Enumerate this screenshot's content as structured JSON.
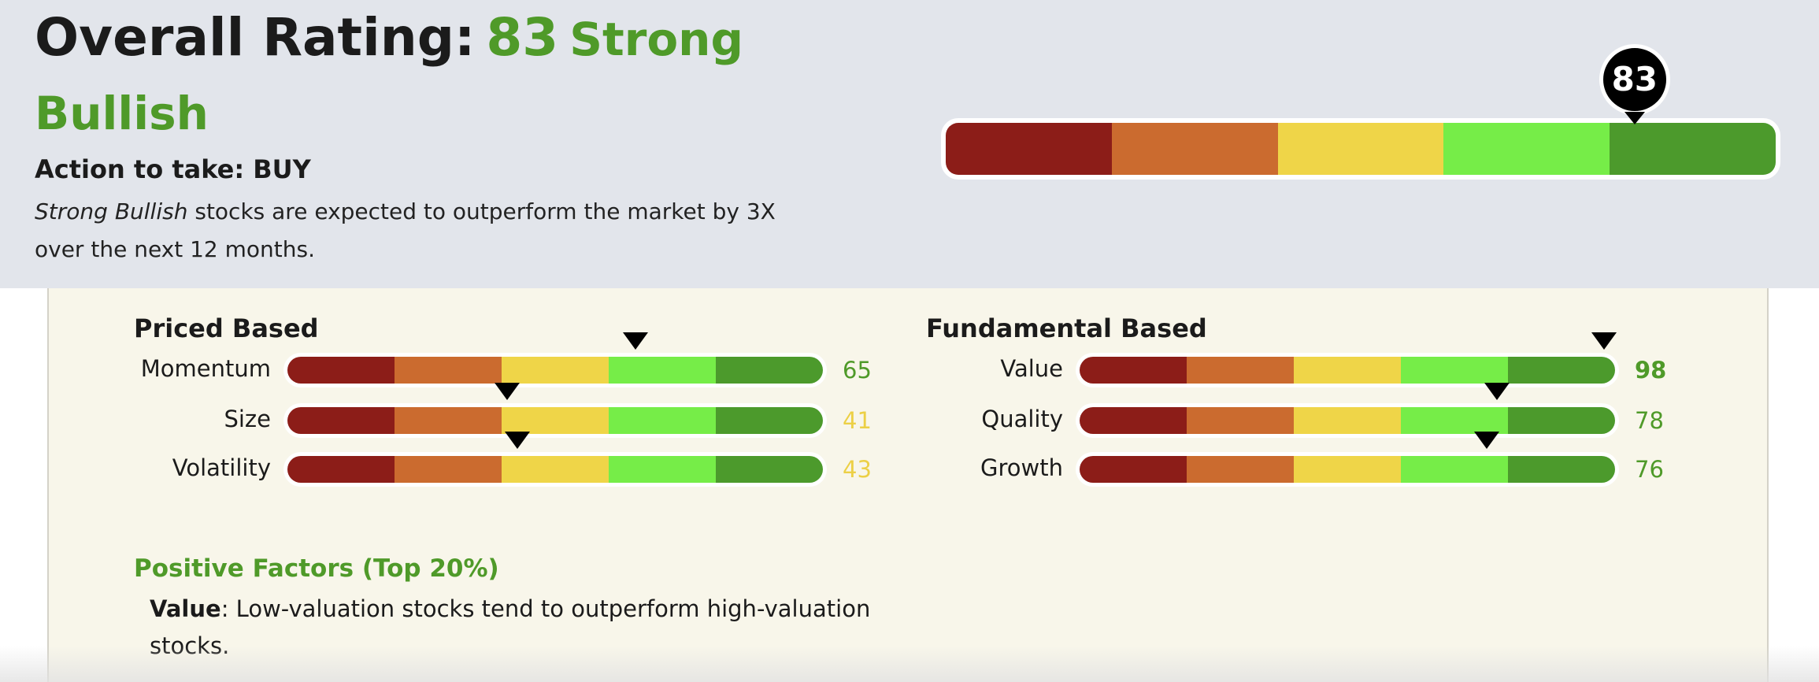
{
  "header": {
    "title_prefix": "Overall Rating:",
    "score": "83",
    "rating_label": "Strong Bullish",
    "action": "Action to take: BUY",
    "desc_em": "Strong Bullish",
    "desc_rest": " stocks are expected to outperform the market by 3X over the next 12 months.",
    "gauge_value": 83
  },
  "colors": {
    "accent_green": "#4f9a29",
    "low_score": "#ecd046",
    "segments": [
      "#8c1d18",
      "#cb6b2f",
      "#efd548",
      "#76ed48",
      "#4c9a2c"
    ]
  },
  "price_based": {
    "title": "Priced Based",
    "rows": [
      {
        "label": "Momentum",
        "value": 65
      },
      {
        "label": "Size",
        "value": 41
      },
      {
        "label": "Volatility",
        "value": 43
      }
    ]
  },
  "fundamental_based": {
    "title": "Fundamental Based",
    "rows": [
      {
        "label": "Value",
        "value": 98
      },
      {
        "label": "Quality",
        "value": 78
      },
      {
        "label": "Growth",
        "value": 76
      }
    ]
  },
  "positive_factors": {
    "title": "Positive Factors (Top 20%)",
    "factor": "Value",
    "text": ": Low-valuation stocks tend to outperform high-valuation stocks."
  }
}
